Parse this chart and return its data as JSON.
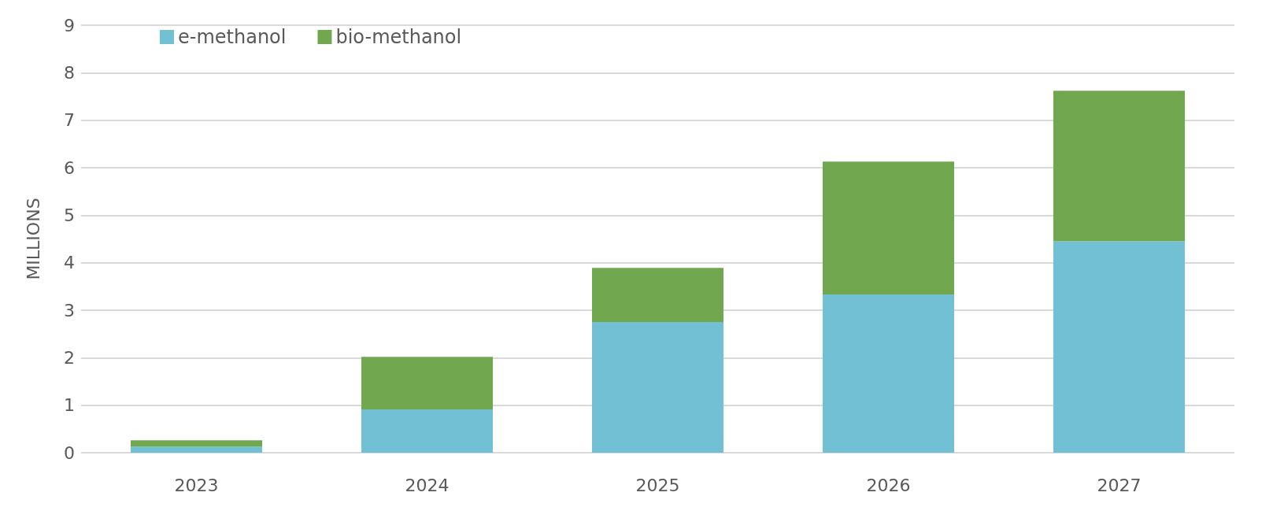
{
  "chart_data": {
    "type": "bar",
    "stacked": true,
    "ylabel": "MILLIONS",
    "categories": [
      "2023",
      "2024",
      "2025",
      "2026",
      "2027"
    ],
    "series": [
      {
        "name": "e-methanol",
        "color": "#72c0d4",
        "values": [
          0.13,
          0.91,
          2.75,
          3.33,
          4.45
        ]
      },
      {
        "name": "bio-methanol",
        "color": "#70a74f",
        "values": [
          0.13,
          1.11,
          1.14,
          2.8,
          3.17
        ]
      }
    ],
    "ylim": [
      0,
      9
    ],
    "yticks": [
      0,
      1,
      2,
      3,
      4,
      5,
      6,
      7,
      8,
      9
    ],
    "grid": "y",
    "legend": "top left"
  }
}
